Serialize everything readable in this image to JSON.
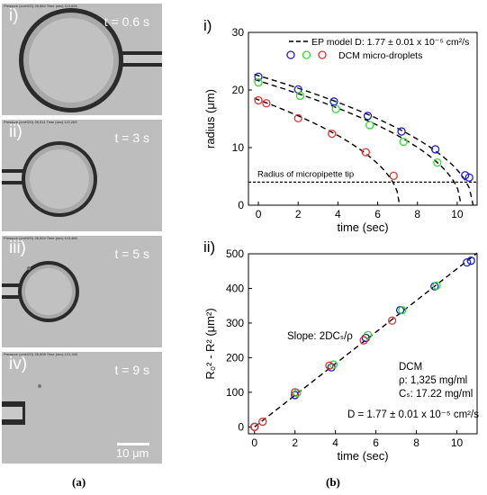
{
  "micrographs": [
    {
      "roman": "i)",
      "time": "t = 0.6 s",
      "header": "Pressure (cmH2O)  28,564   Time (sec)  110,626"
    },
    {
      "roman": "ii)",
      "time": "t = 3 s",
      "header": "Pressure (cmH2O)  28,511   Time (sec)  113,263"
    },
    {
      "roman": "iii)",
      "time": "t = 5 s",
      "header": "Pressure (cmH2O)  28,504   Time (sec)  115,466"
    },
    {
      "roman": "iv)",
      "time": "t = 9 s",
      "header": "Pressure (cmH2O)  28,508   Time (sec)  121,343"
    }
  ],
  "scale_bar": {
    "label": "10 μm"
  },
  "captions": {
    "left": "(a)",
    "right": "(b)"
  },
  "colors": {
    "blue": "#1f1fcc",
    "green": "#33dd33",
    "red": "#e03030",
    "micro_bg": "#b9b9b9"
  },
  "chart_data": [
    {
      "type": "scatter",
      "panel_label": "i)",
      "xlabel": "time (sec)",
      "ylabel": "radius (μm)",
      "xlim": [
        -0.5,
        11
      ],
      "ylim": [
        0,
        30
      ],
      "xticks": [
        0,
        2,
        4,
        6,
        8,
        10
      ],
      "yticks": [
        0,
        10,
        20,
        30
      ],
      "legend": {
        "placement": "top-right",
        "model_label": "EP model D: 1.77 ± 0.01 x 10⁻⁵ cm²/s",
        "data_label": "DCM micro-droplets"
      },
      "annotation": "Radius of micropipette tip",
      "reference_line_y": 4,
      "series": [
        {
          "color": "blue",
          "x": [
            0,
            2,
            3.8,
            5.5,
            7.2,
            8.9,
            10.4,
            10.6
          ],
          "y": [
            22.3,
            20.1,
            18.0,
            15.5,
            12.8,
            9.7,
            5.2,
            4.8
          ]
        },
        {
          "color": "green",
          "x": [
            0,
            2.1,
            3.9,
            5.6,
            7.3,
            9.0
          ],
          "y": [
            21.3,
            19.0,
            16.7,
            13.9,
            11.0,
            7.4
          ]
        },
        {
          "color": "red",
          "x": [
            0,
            0.4,
            2.0,
            3.7,
            5.4,
            6.8
          ],
          "y": [
            18.2,
            17.7,
            15.1,
            12.4,
            9.2,
            5.1
          ]
        }
      ],
      "model_curves": [
        {
          "R0": 22.5,
          "tend": 10.8
        },
        {
          "R0": 21.6,
          "tend": 10.2
        },
        {
          "R0": 18.3,
          "tend": 7.1
        }
      ]
    },
    {
      "type": "scatter",
      "panel_label": "ii)",
      "xlabel": "time (sec)",
      "ylabel": "R₀² - R² (μm²)",
      "xlim": [
        -0.3,
        11
      ],
      "ylim": [
        -20,
        500
      ],
      "xticks": [
        0,
        2,
        4,
        6,
        8,
        10
      ],
      "yticks": [
        0,
        100,
        200,
        300,
        400,
        500
      ],
      "slope_label": "Slope: 2DCₛ/ρ",
      "info": [
        "DCM",
        "ρ: 1,325 mg/ml",
        "Cₛ: 17.22 mg/ml",
        "D = 1.77 ± 0.01  x 10⁻⁵ cm²/s"
      ],
      "fit": {
        "x": [
          0,
          11
        ],
        "y": [
          0,
          502
        ]
      },
      "series": [
        {
          "color": "blue",
          "x": [
            0,
            2,
            3.8,
            5.5,
            7.2,
            8.9,
            10.5,
            10.7
          ],
          "y": [
            0,
            92,
            172,
            257,
            337,
            406,
            475,
            480
          ]
        },
        {
          "color": "green",
          "x": [
            0,
            2.1,
            3.9,
            5.6,
            7.3,
            9.0
          ],
          "y": [
            0,
            98,
            180,
            265,
            337,
            408
          ]
        },
        {
          "color": "red",
          "x": [
            0,
            0.4,
            2.0,
            3.7,
            5.4,
            6.8
          ],
          "y": [
            0,
            15,
            100,
            177,
            250,
            307
          ]
        }
      ]
    }
  ]
}
